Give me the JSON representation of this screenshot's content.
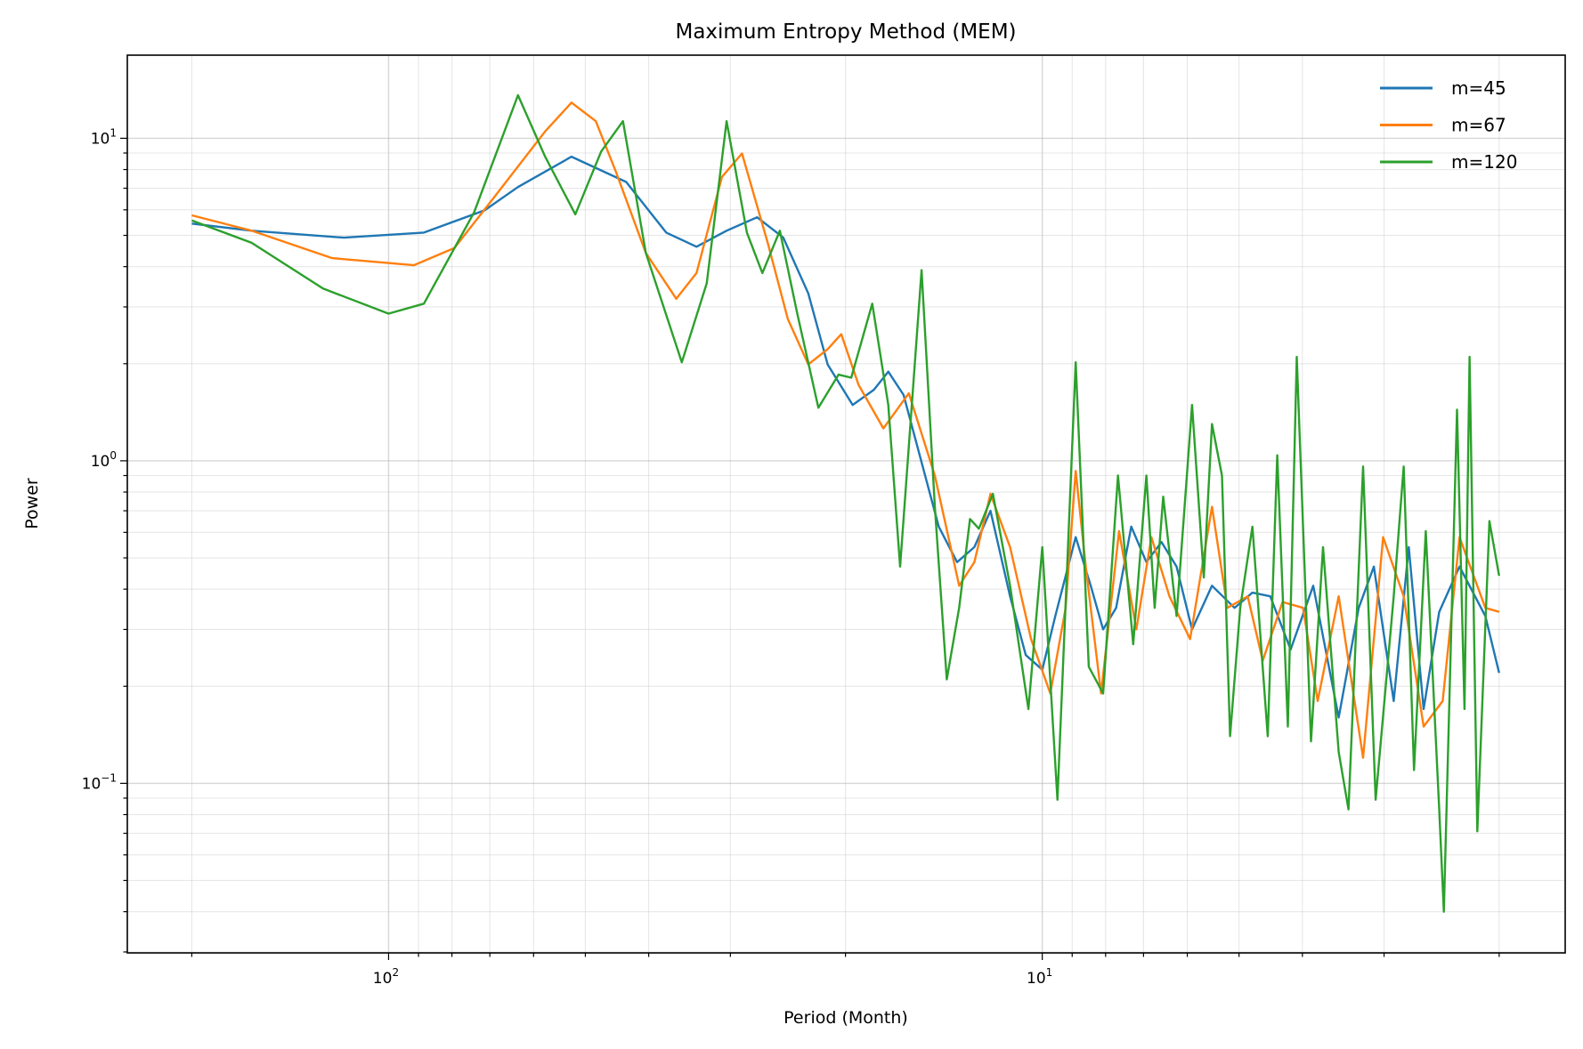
{
  "chart_data": {
    "type": "line",
    "title": "Maximum Entropy Method (MEM)",
    "xlabel": "Period (Month)",
    "ylabel": "Power",
    "xscale": "log",
    "yscale": "log",
    "x_inverted": true,
    "xlim": [
      251,
      1.585
    ],
    "ylim": [
      0.0298,
      18.1
    ],
    "xticks": [
      {
        "value": 100,
        "base": "10",
        "exp": "2"
      },
      {
        "value": 10,
        "base": "10",
        "exp": "1"
      }
    ],
    "yticks": [
      {
        "value": 10,
        "base": "10",
        "exp": "1"
      },
      {
        "value": 1,
        "base": "10",
        "exp": "0"
      },
      {
        "value": 0.1,
        "base": "10",
        "exp": "−1"
      }
    ],
    "grid": "both",
    "legend_position": "top-right",
    "series": [
      {
        "name": "m=45",
        "color": "#1f77b4",
        "points": [
          [
            200,
            5.44
          ],
          [
            162,
            5.17
          ],
          [
            117,
            4.92
          ],
          [
            88.3,
            5.1
          ],
          [
            71.3,
            5.98
          ],
          [
            63.4,
            7.06
          ],
          [
            52.5,
            8.77
          ],
          [
            43.3,
            7.32
          ],
          [
            37.6,
            5.1
          ],
          [
            33.8,
            4.61
          ],
          [
            30.4,
            5.17
          ],
          [
            27.3,
            5.69
          ],
          [
            24.9,
            4.92
          ],
          [
            22.8,
            3.3
          ],
          [
            21.3,
            1.99
          ],
          [
            19.5,
            1.49
          ],
          [
            18.1,
            1.66
          ],
          [
            17.2,
            1.89
          ],
          [
            16.3,
            1.6
          ],
          [
            15.4,
            1.04
          ],
          [
            14.4,
            0.625
          ],
          [
            13.5,
            0.485
          ],
          [
            12.7,
            0.54
          ],
          [
            12.0,
            0.7
          ],
          [
            11.2,
            0.38
          ],
          [
            10.6,
            0.25
          ],
          [
            10.0,
            0.225
          ],
          [
            9.55,
            0.33
          ],
          [
            8.89,
            0.58
          ],
          [
            8.43,
            0.41
          ],
          [
            8.07,
            0.3
          ],
          [
            7.71,
            0.35
          ],
          [
            7.31,
            0.625
          ],
          [
            6.93,
            0.485
          ],
          [
            6.57,
            0.56
          ],
          [
            6.23,
            0.47
          ],
          [
            5.9,
            0.3
          ],
          [
            5.5,
            0.41
          ],
          [
            5.08,
            0.35
          ],
          [
            4.77,
            0.39
          ],
          [
            4.48,
            0.38
          ],
          [
            4.17,
            0.26
          ],
          [
            3.85,
            0.41
          ],
          [
            3.52,
            0.16
          ],
          [
            3.28,
            0.35
          ],
          [
            3.11,
            0.47
          ],
          [
            2.9,
            0.18
          ],
          [
            2.75,
            0.54
          ],
          [
            2.61,
            0.17
          ],
          [
            2.47,
            0.34
          ],
          [
            2.3,
            0.47
          ],
          [
            2.1,
            0.33
          ],
          [
            2.0,
            0.22
          ]
        ]
      },
      {
        "name": "m=67",
        "color": "#ff7f0e",
        "points": [
          [
            200,
            5.77
          ],
          [
            162,
            5.17
          ],
          [
            122,
            4.25
          ],
          [
            91.5,
            4.04
          ],
          [
            79.3,
            4.57
          ],
          [
            68.9,
            6.57
          ],
          [
            57.6,
            10.5
          ],
          [
            52.5,
            12.9
          ],
          [
            48.2,
            11.3
          ],
          [
            44.9,
            7.87
          ],
          [
            40.4,
            4.41
          ],
          [
            36.3,
            3.18
          ],
          [
            33.8,
            3.82
          ],
          [
            30.9,
            7.59
          ],
          [
            28.8,
            8.97
          ],
          [
            26.3,
            4.74
          ],
          [
            24.5,
            2.75
          ],
          [
            22.8,
            1.99
          ],
          [
            21.3,
            2.22
          ],
          [
            20.3,
            2.47
          ],
          [
            19.1,
            1.72
          ],
          [
            17.5,
            1.26
          ],
          [
            16.0,
            1.62
          ],
          [
            14.6,
            0.9
          ],
          [
            13.4,
            0.41
          ],
          [
            12.7,
            0.485
          ],
          [
            12.0,
            0.79
          ],
          [
            11.2,
            0.54
          ],
          [
            10.4,
            0.28
          ],
          [
            9.72,
            0.19
          ],
          [
            9.21,
            0.35
          ],
          [
            8.89,
            0.93
          ],
          [
            8.58,
            0.47
          ],
          [
            8.13,
            0.19
          ],
          [
            7.63,
            0.605
          ],
          [
            7.18,
            0.3
          ],
          [
            6.81,
            0.58
          ],
          [
            6.39,
            0.38
          ],
          [
            5.94,
            0.28
          ],
          [
            5.5,
            0.72
          ],
          [
            5.21,
            0.35
          ],
          [
            4.85,
            0.38
          ],
          [
            4.6,
            0.24
          ],
          [
            4.29,
            0.365
          ],
          [
            3.99,
            0.35
          ],
          [
            3.79,
            0.18
          ],
          [
            3.52,
            0.38
          ],
          [
            3.23,
            0.12
          ],
          [
            3.01,
            0.58
          ],
          [
            2.8,
            0.38
          ],
          [
            2.61,
            0.15
          ],
          [
            2.44,
            0.18
          ],
          [
            2.3,
            0.58
          ],
          [
            2.1,
            0.35
          ],
          [
            2.0,
            0.34
          ]
        ]
      },
      {
        "name": "m=120",
        "color": "#2ca02c",
        "points": [
          [
            200,
            5.56
          ],
          [
            162,
            4.74
          ],
          [
            126,
            3.42
          ],
          [
            100,
            2.86
          ],
          [
            88.3,
            3.07
          ],
          [
            74.0,
            5.89
          ],
          [
            63.4,
            13.6
          ],
          [
            57.6,
            8.77
          ],
          [
            51.8,
            5.81
          ],
          [
            47.3,
            9.1
          ],
          [
            43.8,
            11.3
          ],
          [
            40.4,
            4.41
          ],
          [
            35.6,
            2.02
          ],
          [
            32.6,
            3.55
          ],
          [
            30.4,
            11.3
          ],
          [
            28.3,
            5.1
          ],
          [
            26.8,
            3.82
          ],
          [
            25.2,
            5.17
          ],
          [
            23.7,
            2.86
          ],
          [
            22.0,
            1.46
          ],
          [
            20.5,
            1.85
          ],
          [
            19.6,
            1.81
          ],
          [
            18.2,
            3.07
          ],
          [
            17.2,
            1.49
          ],
          [
            16.5,
            0.47
          ],
          [
            15.3,
            3.9
          ],
          [
            14.6,
            0.72
          ],
          [
            14.0,
            0.21
          ],
          [
            13.4,
            0.35
          ],
          [
            12.9,
            0.66
          ],
          [
            12.5,
            0.616
          ],
          [
            11.9,
            0.79
          ],
          [
            11.2,
            0.41
          ],
          [
            10.5,
            0.17
          ],
          [
            10.0,
            0.54
          ],
          [
            9.48,
            0.089
          ],
          [
            8.89,
            2.02
          ],
          [
            8.49,
            0.23
          ],
          [
            8.07,
            0.19
          ],
          [
            7.66,
            0.9
          ],
          [
            7.26,
            0.27
          ],
          [
            6.93,
            0.9
          ],
          [
            6.73,
            0.35
          ],
          [
            6.53,
            0.774
          ],
          [
            6.23,
            0.33
          ],
          [
            5.9,
            1.49
          ],
          [
            5.66,
            0.435
          ],
          [
            5.5,
            1.3
          ],
          [
            5.31,
            0.9
          ],
          [
            5.16,
            0.14
          ],
          [
            4.98,
            0.35
          ],
          [
            4.77,
            0.625
          ],
          [
            4.52,
            0.14
          ],
          [
            4.37,
            1.04
          ],
          [
            4.21,
            0.15
          ],
          [
            4.08,
            2.1
          ],
          [
            3.88,
            0.135
          ],
          [
            3.72,
            0.54
          ],
          [
            3.52,
            0.125
          ],
          [
            3.4,
            0.083
          ],
          [
            3.23,
            0.96
          ],
          [
            3.09,
            0.089
          ],
          [
            2.9,
            0.38
          ],
          [
            2.8,
            0.96
          ],
          [
            2.7,
            0.11
          ],
          [
            2.59,
            0.605
          ],
          [
            2.47,
            0.083
          ],
          [
            2.43,
            0.04
          ],
          [
            2.32,
            1.44
          ],
          [
            2.26,
            0.17
          ],
          [
            2.22,
            2.1
          ],
          [
            2.16,
            0.071
          ],
          [
            2.07,
            0.65
          ],
          [
            2.0,
            0.44
          ]
        ]
      }
    ]
  }
}
